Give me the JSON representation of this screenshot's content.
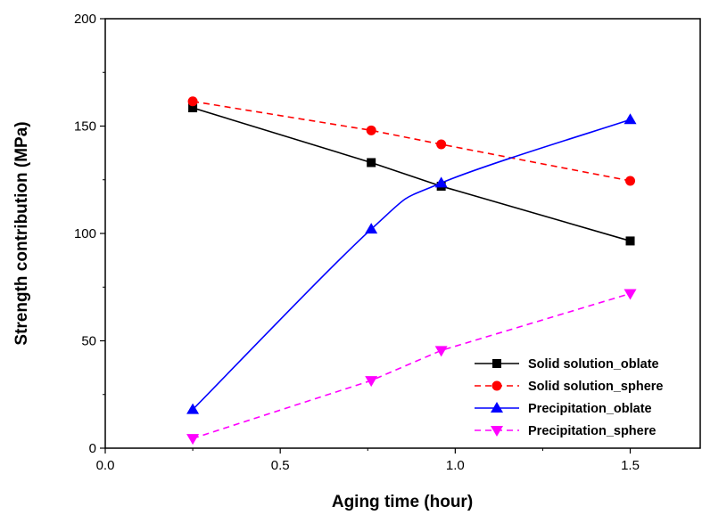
{
  "chart_data": {
    "type": "line",
    "title": "",
    "xlabel": "Aging time (hour)",
    "ylabel": "Strength contribution (MPa)",
    "xlim": [
      0.0,
      1.7
    ],
    "ylim": [
      0,
      200
    ],
    "xticks": [
      0.0,
      0.5,
      1.0,
      1.5
    ],
    "xtick_labels": [
      "0.0",
      "0.5",
      "1.0",
      "1.5"
    ],
    "yticks": [
      0,
      50,
      100,
      150,
      200
    ],
    "ytick_labels": [
      "0",
      "50",
      "100",
      "150",
      "200"
    ],
    "grid": false,
    "legend_position": "bottom-right",
    "series": [
      {
        "name": "Solid solution_oblate",
        "color": "#000000",
        "marker": "square",
        "line": "solid",
        "smooth": false,
        "x": [
          0.25,
          0.76,
          0.96,
          1.5
        ],
        "y": [
          158.5,
          133,
          122,
          96.5
        ]
      },
      {
        "name": "Solid solution_sphere",
        "color": "#ff0000",
        "marker": "circle",
        "line": "dashed",
        "smooth": false,
        "x": [
          0.25,
          0.76,
          0.96,
          1.5
        ],
        "y": [
          161.5,
          148,
          141.5,
          124.5
        ]
      },
      {
        "name": "Precipitation_oblate",
        "color": "#0000ff",
        "marker": "triangle-up",
        "line": "solid",
        "smooth": true,
        "x": [
          0.25,
          0.76,
          0.96,
          1.5
        ],
        "y": [
          18,
          102,
          123.5,
          153
        ]
      },
      {
        "name": "Precipitation_sphere",
        "color": "#ff00ff",
        "marker": "triangle-down",
        "line": "dashed",
        "smooth": false,
        "x": [
          0.25,
          0.76,
          0.96,
          1.5
        ],
        "y": [
          4.5,
          31.5,
          45.5,
          72
        ]
      }
    ]
  }
}
